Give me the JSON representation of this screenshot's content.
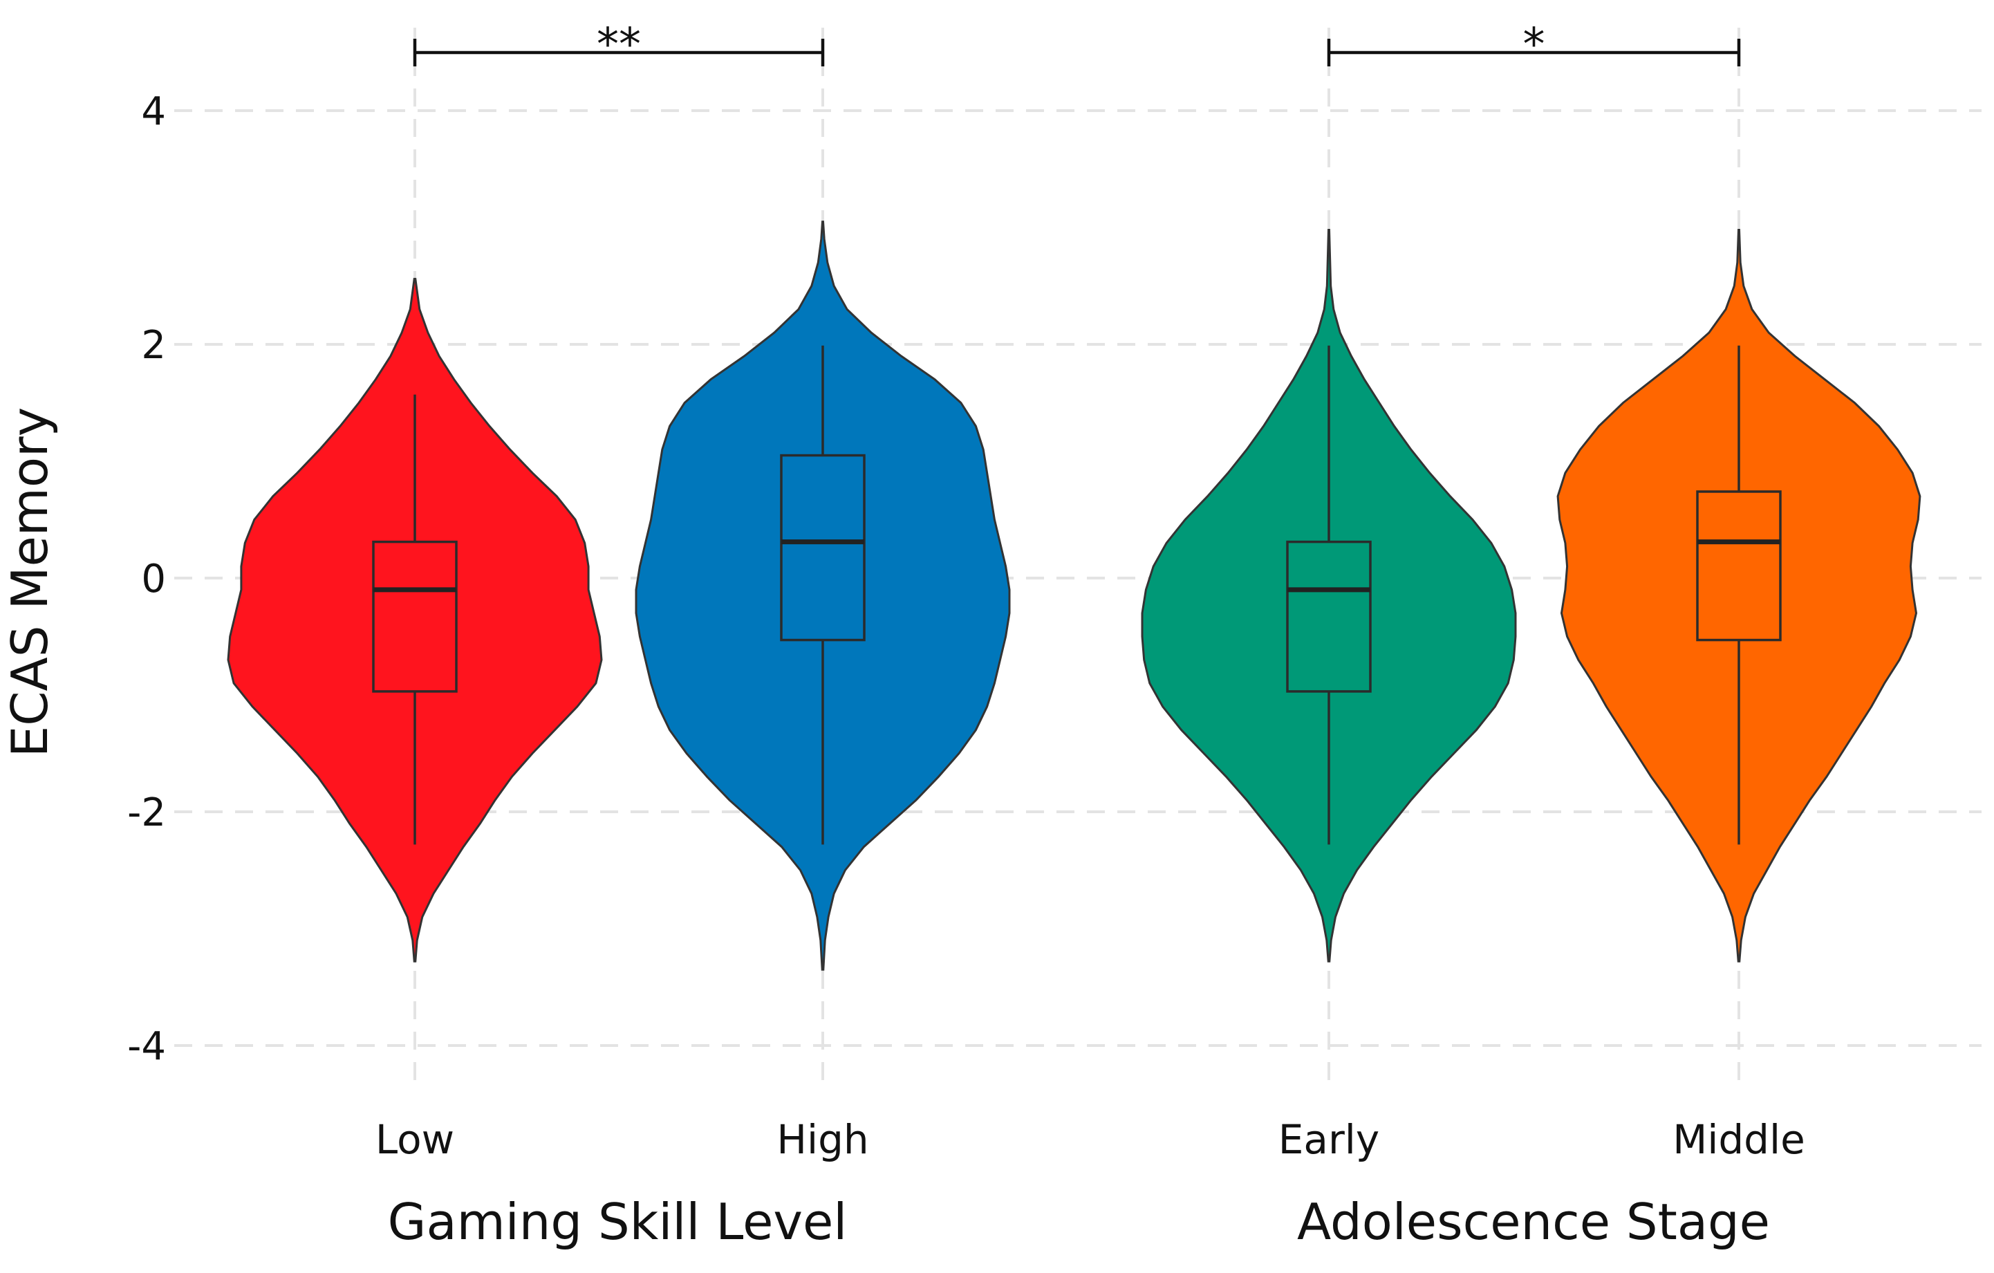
{
  "chart_data": {
    "type": "violin",
    "ylabel": "ECAS Memory",
    "ylim": [
      -4.4,
      4.6
    ],
    "yticks": [
      -4,
      -2,
      0,
      2,
      4
    ],
    "ytick_labels": [
      "-4",
      "-2",
      "0",
      "2",
      "4"
    ],
    "grid": true,
    "panels": [
      {
        "xlabel": "Gaming Skill Level",
        "significance": "**",
        "groups": [
          {
            "name": "Low",
            "color": "#ff141e",
            "box": {
              "q1": -0.97,
              "median": -0.1,
              "q3": 0.31,
              "whisker_low": -2.28,
              "whisker_high": 1.57
            },
            "density": [
              [
                -3.28,
                0.003
              ],
              [
                -3.1,
                0.012
              ],
              [
                -2.9,
                0.04
              ],
              [
                -2.7,
                0.1
              ],
              [
                -2.5,
                0.18
              ],
              [
                -2.3,
                0.26
              ],
              [
                -2.1,
                0.35
              ],
              [
                -1.9,
                0.43
              ],
              [
                -1.7,
                0.52
              ],
              [
                -1.5,
                0.63
              ],
              [
                -1.3,
                0.75
              ],
              [
                -1.1,
                0.87
              ],
              [
                -0.9,
                0.97
              ],
              [
                -0.7,
                1.0
              ],
              [
                -0.5,
                0.99
              ],
              [
                -0.3,
                0.96
              ],
              [
                -0.1,
                0.93
              ],
              [
                0.1,
                0.93
              ],
              [
                0.3,
                0.91
              ],
              [
                0.5,
                0.86
              ],
              [
                0.7,
                0.76
              ],
              [
                0.9,
                0.63
              ],
              [
                1.1,
                0.51
              ],
              [
                1.3,
                0.4
              ],
              [
                1.5,
                0.3
              ],
              [
                1.7,
                0.21
              ],
              [
                1.9,
                0.13
              ],
              [
                2.1,
                0.07
              ],
              [
                2.3,
                0.025
              ],
              [
                2.56,
                0.003
              ]
            ]
          },
          {
            "name": "High",
            "color": "#0077bb",
            "box": {
              "q1": -0.53,
              "median": 0.31,
              "q3": 1.05,
              "whisker_low": -2.28,
              "whisker_high": 1.99
            },
            "density": [
              [
                -3.35,
                0.003
              ],
              [
                -3.1,
                0.012
              ],
              [
                -2.9,
                0.03
              ],
              [
                -2.7,
                0.06
              ],
              [
                -2.5,
                0.12
              ],
              [
                -2.3,
                0.22
              ],
              [
                -2.1,
                0.36
              ],
              [
                -1.9,
                0.5
              ],
              [
                -1.7,
                0.62
              ],
              [
                -1.5,
                0.73
              ],
              [
                -1.3,
                0.82
              ],
              [
                -1.1,
                0.88
              ],
              [
                -0.9,
                0.92
              ],
              [
                -0.7,
                0.95
              ],
              [
                -0.5,
                0.98
              ],
              [
                -0.3,
                1.0
              ],
              [
                -0.1,
                1.0
              ],
              [
                0.1,
                0.98
              ],
              [
                0.3,
                0.95
              ],
              [
                0.5,
                0.92
              ],
              [
                0.7,
                0.9
              ],
              [
                0.9,
                0.88
              ],
              [
                1.1,
                0.86
              ],
              [
                1.3,
                0.82
              ],
              [
                1.5,
                0.74
              ],
              [
                1.7,
                0.6
              ],
              [
                1.9,
                0.42
              ],
              [
                2.1,
                0.26
              ],
              [
                2.3,
                0.13
              ],
              [
                2.5,
                0.06
              ],
              [
                2.7,
                0.025
              ],
              [
                2.9,
                0.008
              ],
              [
                3.05,
                0.002
              ]
            ]
          }
        ]
      },
      {
        "xlabel": "Adolescence Stage",
        "significance": "*",
        "groups": [
          {
            "name": "Early",
            "color": "#009977",
            "box": {
              "q1": -0.97,
              "median": -0.1,
              "q3": 0.31,
              "whisker_low": -2.28,
              "whisker_high": 1.99
            },
            "density": [
              [
                -3.28,
                0.003
              ],
              [
                -3.1,
                0.012
              ],
              [
                -2.9,
                0.035
              ],
              [
                -2.7,
                0.08
              ],
              [
                -2.5,
                0.15
              ],
              [
                -2.3,
                0.24
              ],
              [
                -2.1,
                0.34
              ],
              [
                -1.9,
                0.44
              ],
              [
                -1.7,
                0.55
              ],
              [
                -1.5,
                0.67
              ],
              [
                -1.3,
                0.79
              ],
              [
                -1.1,
                0.89
              ],
              [
                -0.9,
                0.96
              ],
              [
                -0.7,
                0.99
              ],
              [
                -0.5,
                1.0
              ],
              [
                -0.3,
                1.0
              ],
              [
                -0.1,
                0.98
              ],
              [
                0.1,
                0.94
              ],
              [
                0.3,
                0.87
              ],
              [
                0.5,
                0.77
              ],
              [
                0.7,
                0.65
              ],
              [
                0.9,
                0.54
              ],
              [
                1.1,
                0.44
              ],
              [
                1.3,
                0.35
              ],
              [
                1.5,
                0.27
              ],
              [
                1.7,
                0.19
              ],
              [
                1.9,
                0.12
              ],
              [
                2.1,
                0.06
              ],
              [
                2.3,
                0.025
              ],
              [
                2.5,
                0.01
              ],
              [
                2.98,
                0.002
              ]
            ]
          },
          {
            "name": "Middle",
            "color": "#ff6600",
            "box": {
              "q1": -0.53,
              "median": 0.31,
              "q3": 0.74,
              "whisker_low": -2.28,
              "whisker_high": 1.99
            },
            "density": [
              [
                -3.28,
                0.003
              ],
              [
                -3.1,
                0.012
              ],
              [
                -2.9,
                0.035
              ],
              [
                -2.7,
                0.08
              ],
              [
                -2.5,
                0.15
              ],
              [
                -2.3,
                0.22
              ],
              [
                -2.1,
                0.3
              ],
              [
                -1.9,
                0.38
              ],
              [
                -1.7,
                0.47
              ],
              [
                -1.5,
                0.55
              ],
              [
                -1.3,
                0.63
              ],
              [
                -1.1,
                0.71
              ],
              [
                -0.9,
                0.78
              ],
              [
                -0.7,
                0.86
              ],
              [
                -0.5,
                0.92
              ],
              [
                -0.3,
                0.95
              ],
              [
                -0.1,
                0.93
              ],
              [
                0.1,
                0.92
              ],
              [
                0.3,
                0.93
              ],
              [
                0.5,
                0.96
              ],
              [
                0.7,
                0.97
              ],
              [
                0.9,
                0.93
              ],
              [
                1.1,
                0.85
              ],
              [
                1.3,
                0.75
              ],
              [
                1.5,
                0.62
              ],
              [
                1.7,
                0.46
              ],
              [
                1.9,
                0.3
              ],
              [
                2.1,
                0.16
              ],
              [
                2.3,
                0.07
              ],
              [
                2.5,
                0.025
              ],
              [
                2.7,
                0.008
              ],
              [
                2.98,
                0.002
              ]
            ]
          }
        ]
      }
    ]
  }
}
